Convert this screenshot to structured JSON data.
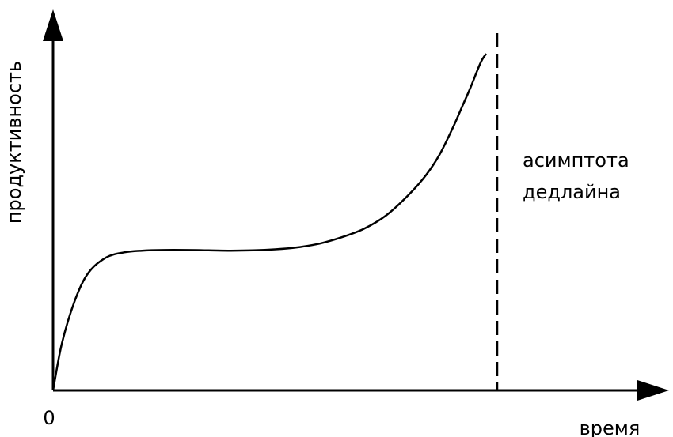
{
  "chart_data": {
    "type": "line",
    "title": "",
    "xlabel": "время",
    "ylabel": "продуктивность",
    "origin_label": "0",
    "grid": false,
    "legend": "none",
    "asymptote_label": [
      "асимптота",
      "дедлайна"
    ],
    "series": [
      {
        "x": [
          0,
          0.02,
          0.05,
          0.08,
          0.12,
          0.16,
          0.2,
          0.25,
          0.3,
          0.35,
          0.4,
          0.45,
          0.5,
          0.55,
          0.6,
          0.65,
          0.7,
          0.75,
          0.8,
          0.84,
          0.87,
          0.9,
          0.92,
          0.94,
          0.955,
          0.965,
          0.975
        ],
        "y": [
          0,
          0.14,
          0.27,
          0.35,
          0.395,
          0.41,
          0.415,
          0.417,
          0.417,
          0.416,
          0.415,
          0.416,
          0.419,
          0.425,
          0.436,
          0.455,
          0.48,
          0.52,
          0.58,
          0.64,
          0.7,
          0.78,
          0.84,
          0.9,
          0.95,
          0.98,
          1.0
        ]
      }
    ],
    "asymptote_x": 1.0,
    "colors": {
      "line": "#000000",
      "axes": "#000000",
      "background": "#ffffff"
    }
  }
}
